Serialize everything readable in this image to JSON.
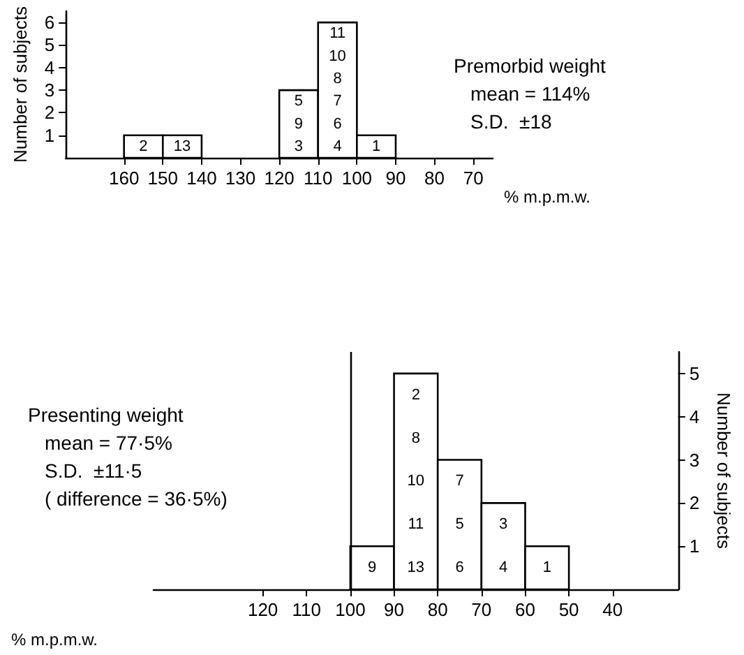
{
  "chart_data": [
    {
      "type": "histogram",
      "xlabel": "% m.p.m.w.",
      "ylabel": "Number of subjects",
      "bins": [
        160,
        150,
        140,
        130,
        120,
        110,
        100,
        90
      ],
      "values": [
        1,
        1,
        0,
        0,
        3,
        6,
        1
      ],
      "color": "#ffffff",
      "xlim": [
        175,
        65
      ],
      "xticks": [
        160,
        150,
        140,
        130,
        120,
        110,
        100,
        90,
        80,
        70
      ],
      "ylim": [
        0,
        6.5
      ],
      "yticks": [
        1,
        2,
        3,
        4,
        5,
        6
      ],
      "grid": false,
      "annotations": [
        "Premorbid weight",
        "mean = 114%",
        "S.D.  ±18",
        "2",
        "13",
        "3",
        "9",
        "5",
        "4",
        "6",
        "7",
        "8",
        "10",
        "11",
        "1"
      ]
    },
    {
      "type": "histogram",
      "xlabel": "% m.p.m.w.",
      "y2label": "Number of subjects",
      "bins": [
        100,
        90,
        80,
        70,
        60,
        50
      ],
      "series": [
        {
          "values": [
            1,
            5,
            3,
            2,
            1
          ],
          "axis": "y2",
          "color": "#ffffff"
        }
      ],
      "xlim": [
        145,
        25
      ],
      "xticks": [
        120,
        110,
        100,
        90,
        80,
        70,
        60,
        50,
        40
      ],
      "y2lim": [
        0,
        5.5
      ],
      "y2ticks": [
        1,
        2,
        3,
        4,
        5
      ],
      "grid": false,
      "ref_lines": [
        {
          "axis": "x",
          "value": 100
        }
      ],
      "annotations": [
        "Presenting weight",
        "mean = 77·5%",
        "S.D.  ±11·5",
        "( difference = 36·5%)",
        "9",
        "13",
        "11",
        "10",
        "8",
        "2",
        "6",
        "5",
        "7",
        "4",
        "3",
        "1"
      ]
    }
  ]
}
